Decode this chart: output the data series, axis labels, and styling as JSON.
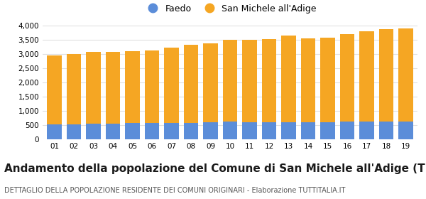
{
  "years": [
    "01",
    "02",
    "03",
    "04",
    "05",
    "06",
    "07",
    "08",
    "09",
    "10",
    "11",
    "12",
    "13",
    "14",
    "15",
    "16",
    "17",
    "18",
    "19"
  ],
  "faedo": [
    530,
    530,
    550,
    550,
    570,
    575,
    575,
    580,
    600,
    615,
    610,
    605,
    610,
    610,
    610,
    615,
    625,
    630,
    635
  ],
  "san_michele": [
    2430,
    2480,
    2530,
    2540,
    2540,
    2565,
    2670,
    2760,
    2790,
    2890,
    2910,
    2940,
    3060,
    2960,
    2980,
    3090,
    3175,
    3245,
    3280
  ],
  "faedo_color": "#5b8dd9",
  "san_michele_color": "#f5a623",
  "background_color": "#ffffff",
  "grid_color": "#e0e0e0",
  "title": "Andamento della popolazione del Comune di San Michele all'Adige (TN)",
  "subtitle": "DETTAGLIO DELLA POPOLAZIONE RESIDENTE DEI COMUNI ORIGINARI - Elaborazione TUTTITALIA.IT",
  "legend_faedo": "Faedo",
  "legend_san_michele": "San Michele all'Adige",
  "ylim": [
    0,
    4000
  ],
  "yticks": [
    0,
    500,
    1000,
    1500,
    2000,
    2500,
    3000,
    3500,
    4000
  ],
  "title_fontsize": 11,
  "subtitle_fontsize": 7
}
